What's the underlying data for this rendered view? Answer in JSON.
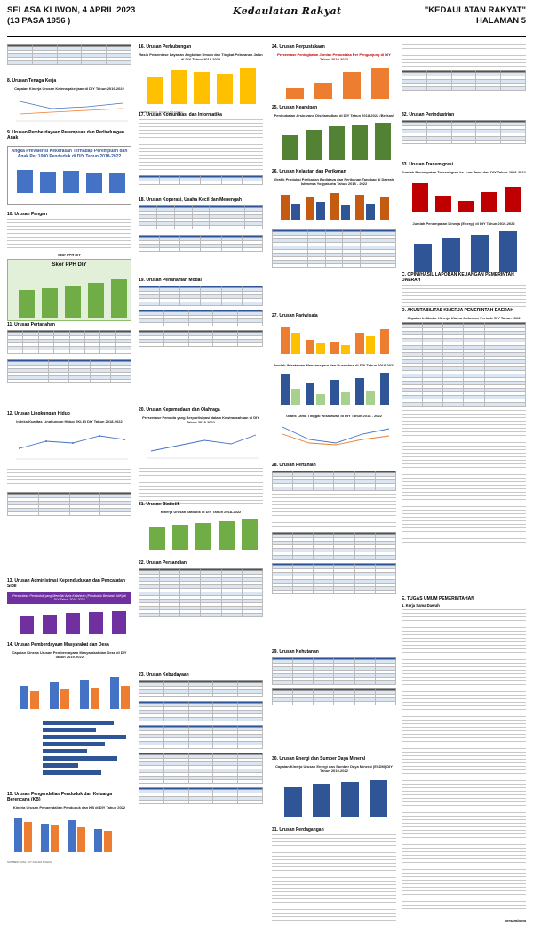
{
  "header": {
    "date": "SELASA KLIWON, 4 APRIL 2023",
    "pasa": "(13 PASA 1956 )",
    "masthead": "Kedaulatan Rakyat",
    "paper_name": "\"KEDAULATAN RAKYAT\"",
    "page": "HALAMAN 5"
  },
  "col1": {
    "s8": "8. Urusan Tenaga Kerja",
    "s8_chart_title": "Capaian Kinerja Urusan Ketenagakerjaan di DIY Tahun 2019-2022",
    "s9": "9. Urusan Pemberdayaan Perempuan dan Perlindungan Anak",
    "s9_chart_title": "Angka Prevalensi Kekerasan Terhadap Perempuan dan Anak Per 1000 Penduduk di DIY Tahun 2018-2022",
    "s10": "10. Urusan Pangan",
    "s10_chart_title": "Skor PPH DIY",
    "s11": "11. Urusan Pertanahan",
    "s12": "12. Urusan Lingkungan Hidup",
    "s12_chart_title": "Indeks Kualitas Lingkungan Hidup (IKLH) DIY Tahun 2018-2022",
    "s13": "13. Urusan Administrasi Kependudukan dan Pencatatan Sipil",
    "s13_banner": "Persentase Penduduk yang Memiliki Akta Kelahiran (Penduduk Berbasis NIK) di DIY Tahun 2018-2022",
    "s14": "14. Urusan Pemberdayaan Masyarakat dan Desa",
    "s14_chart_title": "Capaian Kinerja Urusan Pemberdayaan Masyarakat dan Desa di DIY Tahun 2019-2022",
    "s15": "15. Urusan Pengendalian Penduduk dan Keluarga Berencana (KB)",
    "s15_chart_title": "Kinerja Urusan Pengendalian Penduduk dan KB di DIY Tahun 2022",
    "source": "SUMBER DATA: DIY DALAM ANGKA",
    "pph_label": "Skor PPH DIY"
  },
  "col2": {
    "s16": "16. Urusan Perhubungan",
    "s16_chart_title": "Rasio Persentase Layanan Angkutan Umum dan Tingkat Pelayanan Jalan di DIY Tahun 2018-2022",
    "s17": "17. Urusan Komunikasi dan Informatika",
    "s18": "18. Urusan Koperasi, Usaha Kecil dan Menengah",
    "s19": "19. Urusan Penanaman Modal",
    "s20": "20. Urusan Kepemudaan dan Olahraga",
    "s20_chart_title": "Persentase Pemuda yang Berpartisipasi dalam Kewirausahaan di DIY Tahun 2018-2022",
    "s21": "21. Urusan Statistik",
    "s21_chart_title": "Kinerja Urusan Statistik di DIY Tahun 2018-2022",
    "s22": "22. Urusan Persandian",
    "s23": "23. Urusan Kebudayaan",
    "source": "SUMBER DATA: DIY DALAM ANGKA"
  },
  "col3": {
    "s24": "24. Urusan Perpustakaan",
    "s24_chart_title": "Persentase Peningkatan Jumlah Pemustaka Per Pengunjung di DIY Tahun 2019-2022",
    "s25": "25. Urusan Kearsipan",
    "s25_chart_title": "Peningkatan Arsip yang Diselamatkan di DIY Tahun 2018-2022 (Berkas)",
    "s26": "26. Urusan Kelautan dan Perikanan",
    "s26_chart_title": "Grafik Produksi Perikanan Budidaya dan Perikanan Tangkap di Daerah Istimewa Yogyakarta Tahun 2018 - 2022",
    "s27": "27. Urusan Pariwisata",
    "s27_chart_title": "Jumlah Wisatawan Mancanegara dan Nusantara di DIY Tahun 2018-2022",
    "s27_chart2_title": "Grafik Lama Tinggal Wisatawan di DIY Tahun 2018 - 2022",
    "s28": "28. Urusan Pertanian",
    "s29": "29. Urusan Kehutanan",
    "s30": "30. Urusan Energi dan Sumber Daya Mineral",
    "s30_chart_title": "Capaian Kinerja Urusan Energi dan Sumber Daya Mineral (ESDM) DIY Tahun 2019-2022",
    "s31": "31. Urusan Perdagangan",
    "source": "SUMBER DATA: DIY DALAM ANGKA"
  },
  "col4": {
    "s32": "32. Urusan Perindustrian",
    "s33": "33. Urusan Transmigrasi",
    "s33_chart_title": "Jumlah Penempatan Transmigran ke Luar Jawa dari DIY Tahun 2018-2022",
    "s33_chart2_title": "Jumlah Penempatan Kinerja (Energi) di DIY Tahun 2019-2022",
    "c": "C. OPINI/HASIL LAPORAN KEUANGAN PEMERINTAH DAERAH",
    "d": "D. AKUNTABILITAS KINERJA PEMERINTAH DAERAH",
    "d_table_title": "Capaian Indikator Kinerja Utama Gubernur Periode DIY Tahun 2022",
    "e": "E. TUGAS UMUM PEMERINTAHAN",
    "e1": "1. Kerja Sama Daerah",
    "footer": "bersambung"
  }
}
